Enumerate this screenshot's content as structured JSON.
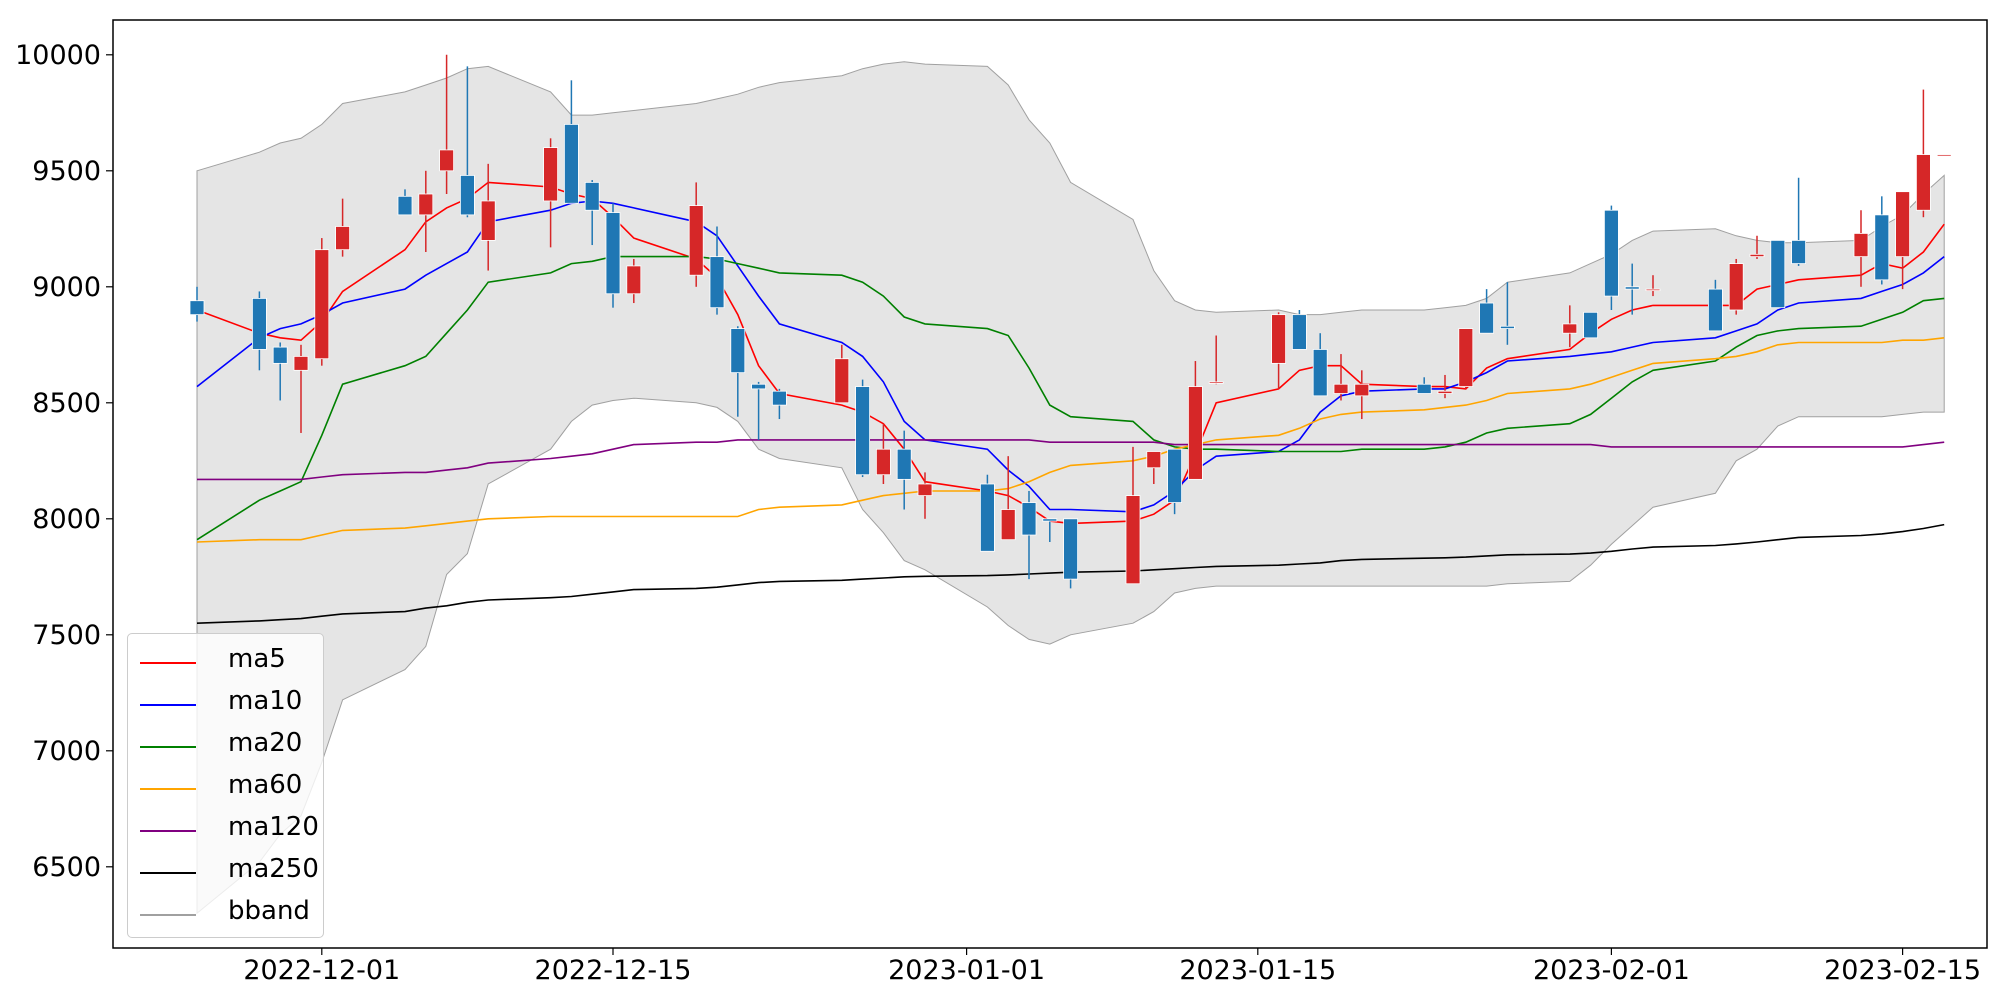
{
  "chart_data": {
    "type": "candlestick",
    "title": "",
    "xlabel": "",
    "ylabel": "",
    "ylim": [
      6150,
      10150
    ],
    "yticks": [
      6500,
      7000,
      7500,
      8000,
      8500,
      9000,
      9500,
      10000
    ],
    "xticks": [
      "2022-12-01",
      "2022-12-15",
      "2023-01-01",
      "2023-01-15",
      "2023-02-01",
      "2023-02-15"
    ],
    "legend_position": "lower-left",
    "grid": false,
    "colors": {
      "up": "#d62728",
      "down": "#1f77b4",
      "bband_fill": "#e5e5e5",
      "bband_edge": "#a0a0a0"
    },
    "dates": [
      "2022-11-25",
      "2022-11-28",
      "2022-11-29",
      "2022-11-30",
      "2022-12-01",
      "2022-12-02",
      "2022-12-05",
      "2022-12-06",
      "2022-12-07",
      "2022-12-08",
      "2022-12-09",
      "2022-12-12",
      "2022-12-13",
      "2022-12-14",
      "2022-12-15",
      "2022-12-16",
      "2022-12-19",
      "2022-12-20",
      "2022-12-21",
      "2022-12-22",
      "2022-12-23",
      "2022-12-26",
      "2022-12-27",
      "2022-12-28",
      "2022-12-29",
      "2022-12-30",
      "2023-01-02",
      "2023-01-03",
      "2023-01-04",
      "2023-01-05",
      "2023-01-06",
      "2023-01-09",
      "2023-01-10",
      "2023-01-11",
      "2023-01-12",
      "2023-01-13",
      "2023-01-16",
      "2023-01-17",
      "2023-01-18",
      "2023-01-19",
      "2023-01-20",
      "2023-01-23",
      "2023-01-24",
      "2023-01-25",
      "2023-01-26",
      "2023-01-27",
      "2023-01-30",
      "2023-01-31",
      "2023-02-01",
      "2023-02-02",
      "2023-02-03",
      "2023-02-06",
      "2023-02-07",
      "2023-02-08",
      "2023-02-09",
      "2023-02-10",
      "2023-02-13",
      "2023-02-14",
      "2023-02-15",
      "2023-02-16",
      "2023-02-17"
    ],
    "ohlc": [
      [
        8940,
        9000,
        8850,
        8880
      ],
      [
        8950,
        8980,
        8640,
        8730
      ],
      [
        8740,
        8760,
        8510,
        8670
      ],
      [
        8640,
        8750,
        8370,
        8700
      ],
      [
        8690,
        9210,
        8660,
        9160
      ],
      [
        9160,
        9380,
        9130,
        9260
      ],
      [
        9390,
        9420,
        9320,
        9310
      ],
      [
        9310,
        9500,
        9150,
        9400
      ],
      [
        9500,
        10000,
        9400,
        9590
      ],
      [
        9480,
        9950,
        9300,
        9310
      ],
      [
        9200,
        9530,
        9070,
        9370
      ],
      [
        9370,
        9640,
        9170,
        9600
      ],
      [
        9700,
        9890,
        9360,
        9360
      ],
      [
        9450,
        9460,
        9180,
        9330
      ],
      [
        9320,
        9360,
        8910,
        8970
      ],
      [
        8970,
        9120,
        8930,
        9090
      ],
      [
        9050,
        9450,
        9000,
        9350
      ],
      [
        9130,
        9260,
        8880,
        8910
      ],
      [
        8820,
        8830,
        8440,
        8630
      ],
      [
        8580,
        8590,
        8340,
        8560
      ],
      [
        8550,
        8560,
        8430,
        8490
      ],
      [
        8500,
        8750,
        8500,
        8690
      ],
      [
        8570,
        8600,
        8180,
        8190
      ],
      [
        8190,
        8410,
        8150,
        8300
      ],
      [
        8300,
        8380,
        8040,
        8170
      ],
      [
        8100,
        8200,
        8000,
        8150
      ],
      [
        8150,
        8190,
        7860,
        7860
      ],
      [
        7910,
        8270,
        7910,
        8040
      ],
      [
        8070,
        8120,
        7740,
        7930
      ],
      [
        8000,
        8000,
        7900,
        7990
      ],
      [
        8000,
        8000,
        7700,
        7740
      ],
      [
        7720,
        8310,
        7720,
        8100
      ],
      [
        8220,
        8290,
        8150,
        8290
      ],
      [
        8300,
        8300,
        8020,
        8070
      ],
      [
        8170,
        8680,
        8170,
        8570
      ],
      [
        8590,
        8790,
        8580,
        8590
      ],
      [
        8670,
        8890,
        8560,
        8880
      ],
      [
        8880,
        8900,
        8730,
        8730
      ],
      [
        8730,
        8800,
        8530,
        8530
      ],
      [
        8540,
        8710,
        8510,
        8580
      ],
      [
        8530,
        8640,
        8430,
        8580
      ],
      [
        8580,
        8610,
        8540,
        8540
      ],
      [
        8540,
        8620,
        8520,
        8550
      ],
      [
        8570,
        8820,
        8560,
        8820
      ],
      [
        8930,
        8990,
        8800,
        8800
      ],
      [
        8830,
        9020,
        8750,
        8820
      ],
      [
        8800,
        8920,
        8740,
        8840
      ],
      [
        8890,
        8890,
        8780,
        8780
      ],
      [
        9330,
        9350,
        8900,
        8960
      ],
      [
        9000,
        9100,
        8880,
        8990
      ],
      [
        8990,
        9050,
        8960,
        8990
      ],
      [
        8990,
        9030,
        8810,
        8810
      ],
      [
        8900,
        9120,
        8880,
        9100
      ],
      [
        9130,
        9220,
        9120,
        9140
      ],
      [
        9200,
        9200,
        8910,
        8910
      ],
      [
        9200,
        9470,
        9090,
        9100
      ],
      [
        9130,
        9330,
        9000,
        9230
      ],
      [
        9310,
        9390,
        9010,
        9030
      ],
      [
        9130,
        9410,
        8990,
        9410
      ],
      [
        9330,
        9850,
        9300,
        9570
      ],
      [
        9570,
        9570,
        9570,
        9570
      ]
    ],
    "series": [
      {
        "name": "ma5",
        "color": "#ff0000",
        "values": [
          8900,
          8800,
          8780,
          8770,
          8850,
          8980,
          9160,
          9280,
          9340,
          9380,
          9450,
          9430,
          9400,
          9380,
          9300,
          9210,
          9120,
          9040,
          8880,
          8660,
          8540,
          8490,
          8460,
          8410,
          8300,
          8160,
          8120,
          8100,
          8050,
          7990,
          7980,
          7990,
          8020,
          8080,
          8280,
          8500,
          8560,
          8640,
          8660,
          8660,
          8580,
          8570,
          8570,
          8560,
          8650,
          8690,
          8730,
          8800,
          8860,
          8900,
          8920,
          8920,
          8920,
          8990,
          9010,
          9030,
          9050,
          9100,
          9080,
          9150,
          9270
        ]
      },
      {
        "name": "ma10",
        "color": "#0000ff",
        "values": [
          8570,
          8780,
          8820,
          8840,
          8880,
          8930,
          8990,
          9050,
          9100,
          9150,
          9280,
          9330,
          9360,
          9370,
          9360,
          9340,
          9280,
          9220,
          9090,
          8960,
          8840,
          8760,
          8700,
          8590,
          8420,
          8340,
          8300,
          8210,
          8140,
          8040,
          8040,
          8030,
          8060,
          8120,
          8210,
          8270,
          8290,
          8340,
          8460,
          8530,
          8550,
          8560,
          8560,
          8590,
          8630,
          8680,
          8700,
          8710,
          8720,
          8740,
          8760,
          8780,
          8810,
          8840,
          8900,
          8930,
          8950,
          8980,
          9010,
          9060,
          9130
        ]
      },
      {
        "name": "ma20",
        "color": "#008000",
        "values": [
          7910,
          8080,
          8120,
          8160,
          8360,
          8580,
          8660,
          8700,
          8800,
          8900,
          9020,
          9060,
          9100,
          9110,
          9130,
          9130,
          9130,
          9120,
          9100,
          9080,
          9060,
          9050,
          9020,
          8960,
          8870,
          8840,
          8820,
          8790,
          8650,
          8490,
          8440,
          8420,
          8340,
          8310,
          8300,
          8300,
          8290,
          8290,
          8290,
          8290,
          8300,
          8300,
          8310,
          8330,
          8370,
          8390,
          8410,
          8450,
          8520,
          8590,
          8640,
          8680,
          8740,
          8790,
          8810,
          8820,
          8830,
          8860,
          8890,
          8940,
          8950
        ]
      },
      {
        "name": "ma60",
        "color": "#ffa500",
        "values": [
          7900,
          7910,
          7910,
          7910,
          7930,
          7950,
          7960,
          7970,
          7980,
          7990,
          8000,
          8010,
          8010,
          8010,
          8010,
          8010,
          8010,
          8010,
          8010,
          8040,
          8050,
          8060,
          8080,
          8100,
          8110,
          8120,
          8120,
          8130,
          8160,
          8200,
          8230,
          8250,
          8270,
          8300,
          8320,
          8340,
          8360,
          8390,
          8430,
          8450,
          8460,
          8470,
          8480,
          8490,
          8510,
          8540,
          8560,
          8580,
          8610,
          8640,
          8670,
          8690,
          8700,
          8720,
          8750,
          8760,
          8760,
          8760,
          8770,
          8770,
          8780
        ]
      },
      {
        "name": "ma120",
        "color": "#800080",
        "values": [
          8170,
          8170,
          8170,
          8170,
          8180,
          8190,
          8200,
          8200,
          8210,
          8220,
          8240,
          8260,
          8270,
          8280,
          8300,
          8320,
          8330,
          8330,
          8340,
          8340,
          8340,
          8340,
          8340,
          8340,
          8340,
          8340,
          8340,
          8340,
          8340,
          8330,
          8330,
          8330,
          8330,
          8320,
          8320,
          8320,
          8320,
          8320,
          8320,
          8320,
          8320,
          8320,
          8320,
          8320,
          8320,
          8320,
          8320,
          8320,
          8310,
          8310,
          8310,
          8310,
          8310,
          8310,
          8310,
          8310,
          8310,
          8310,
          8310,
          8320,
          8330
        ]
      },
      {
        "name": "ma250",
        "color": "#000000",
        "values": [
          7550,
          7560,
          7565,
          7570,
          7580,
          7590,
          7600,
          7615,
          7625,
          7640,
          7650,
          7660,
          7665,
          7675,
          7685,
          7695,
          7700,
          7705,
          7715,
          7725,
          7730,
          7735,
          7740,
          7745,
          7750,
          7752,
          7755,
          7758,
          7762,
          7766,
          7770,
          7775,
          7780,
          7785,
          7790,
          7795,
          7800,
          7805,
          7810,
          7820,
          7825,
          7830,
          7832,
          7835,
          7840,
          7845,
          7848,
          7852,
          7860,
          7870,
          7878,
          7885,
          7892,
          7900,
          7910,
          7920,
          7928,
          7935,
          7945,
          7958,
          7975
        ]
      }
    ],
    "bband": {
      "name": "bband",
      "upper": [
        9500,
        9580,
        9620,
        9640,
        9700,
        9790,
        9840,
        9870,
        9900,
        9940,
        9950,
        9840,
        9740,
        9740,
        9750,
        9760,
        9790,
        9810,
        9830,
        9860,
        9880,
        9910,
        9940,
        9960,
        9970,
        9960,
        9950,
        9870,
        9720,
        9620,
        9450,
        9290,
        9070,
        8940,
        8900,
        8890,
        8900,
        8880,
        8880,
        8890,
        8900,
        8900,
        8910,
        8920,
        8950,
        9020,
        9060,
        9100,
        9140,
        9200,
        9240,
        9250,
        9220,
        9200,
        9190,
        9190,
        9200,
        9260,
        9310,
        9400,
        9480
      ],
      "lower": [
        6300,
        6520,
        6640,
        6720,
        6950,
        7220,
        7350,
        7450,
        7760,
        7850,
        8150,
        8300,
        8420,
        8490,
        8510,
        8520,
        8500,
        8480,
        8420,
        8300,
        8260,
        8220,
        8040,
        7940,
        7820,
        7780,
        7620,
        7540,
        7480,
        7460,
        7500,
        7550,
        7600,
        7680,
        7700,
        7710,
        7710,
        7710,
        7710,
        7710,
        7710,
        7710,
        7710,
        7710,
        7710,
        7720,
        7730,
        7800,
        7890,
        7970,
        8050,
        8110,
        8250,
        8300,
        8400,
        8440,
        8440,
        8440,
        8450,
        8460,
        8460
      ]
    }
  }
}
